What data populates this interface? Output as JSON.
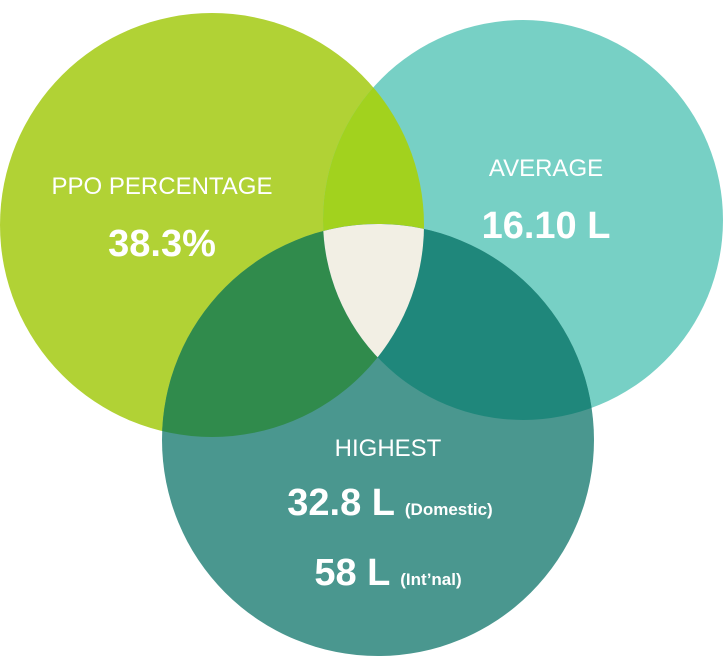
{
  "circles": [
    {
      "label": "PPO PERCENTAGE",
      "value": "38.3%"
    },
    {
      "label": "AVERAGE",
      "value": "16.10 L"
    },
    {
      "label": "HIGHEST",
      "values": [
        {
          "value": "32.8 L",
          "note": "(Domestic)"
        },
        {
          "value": "58 L",
          "note": "(Int’nal)"
        }
      ]
    }
  ]
}
